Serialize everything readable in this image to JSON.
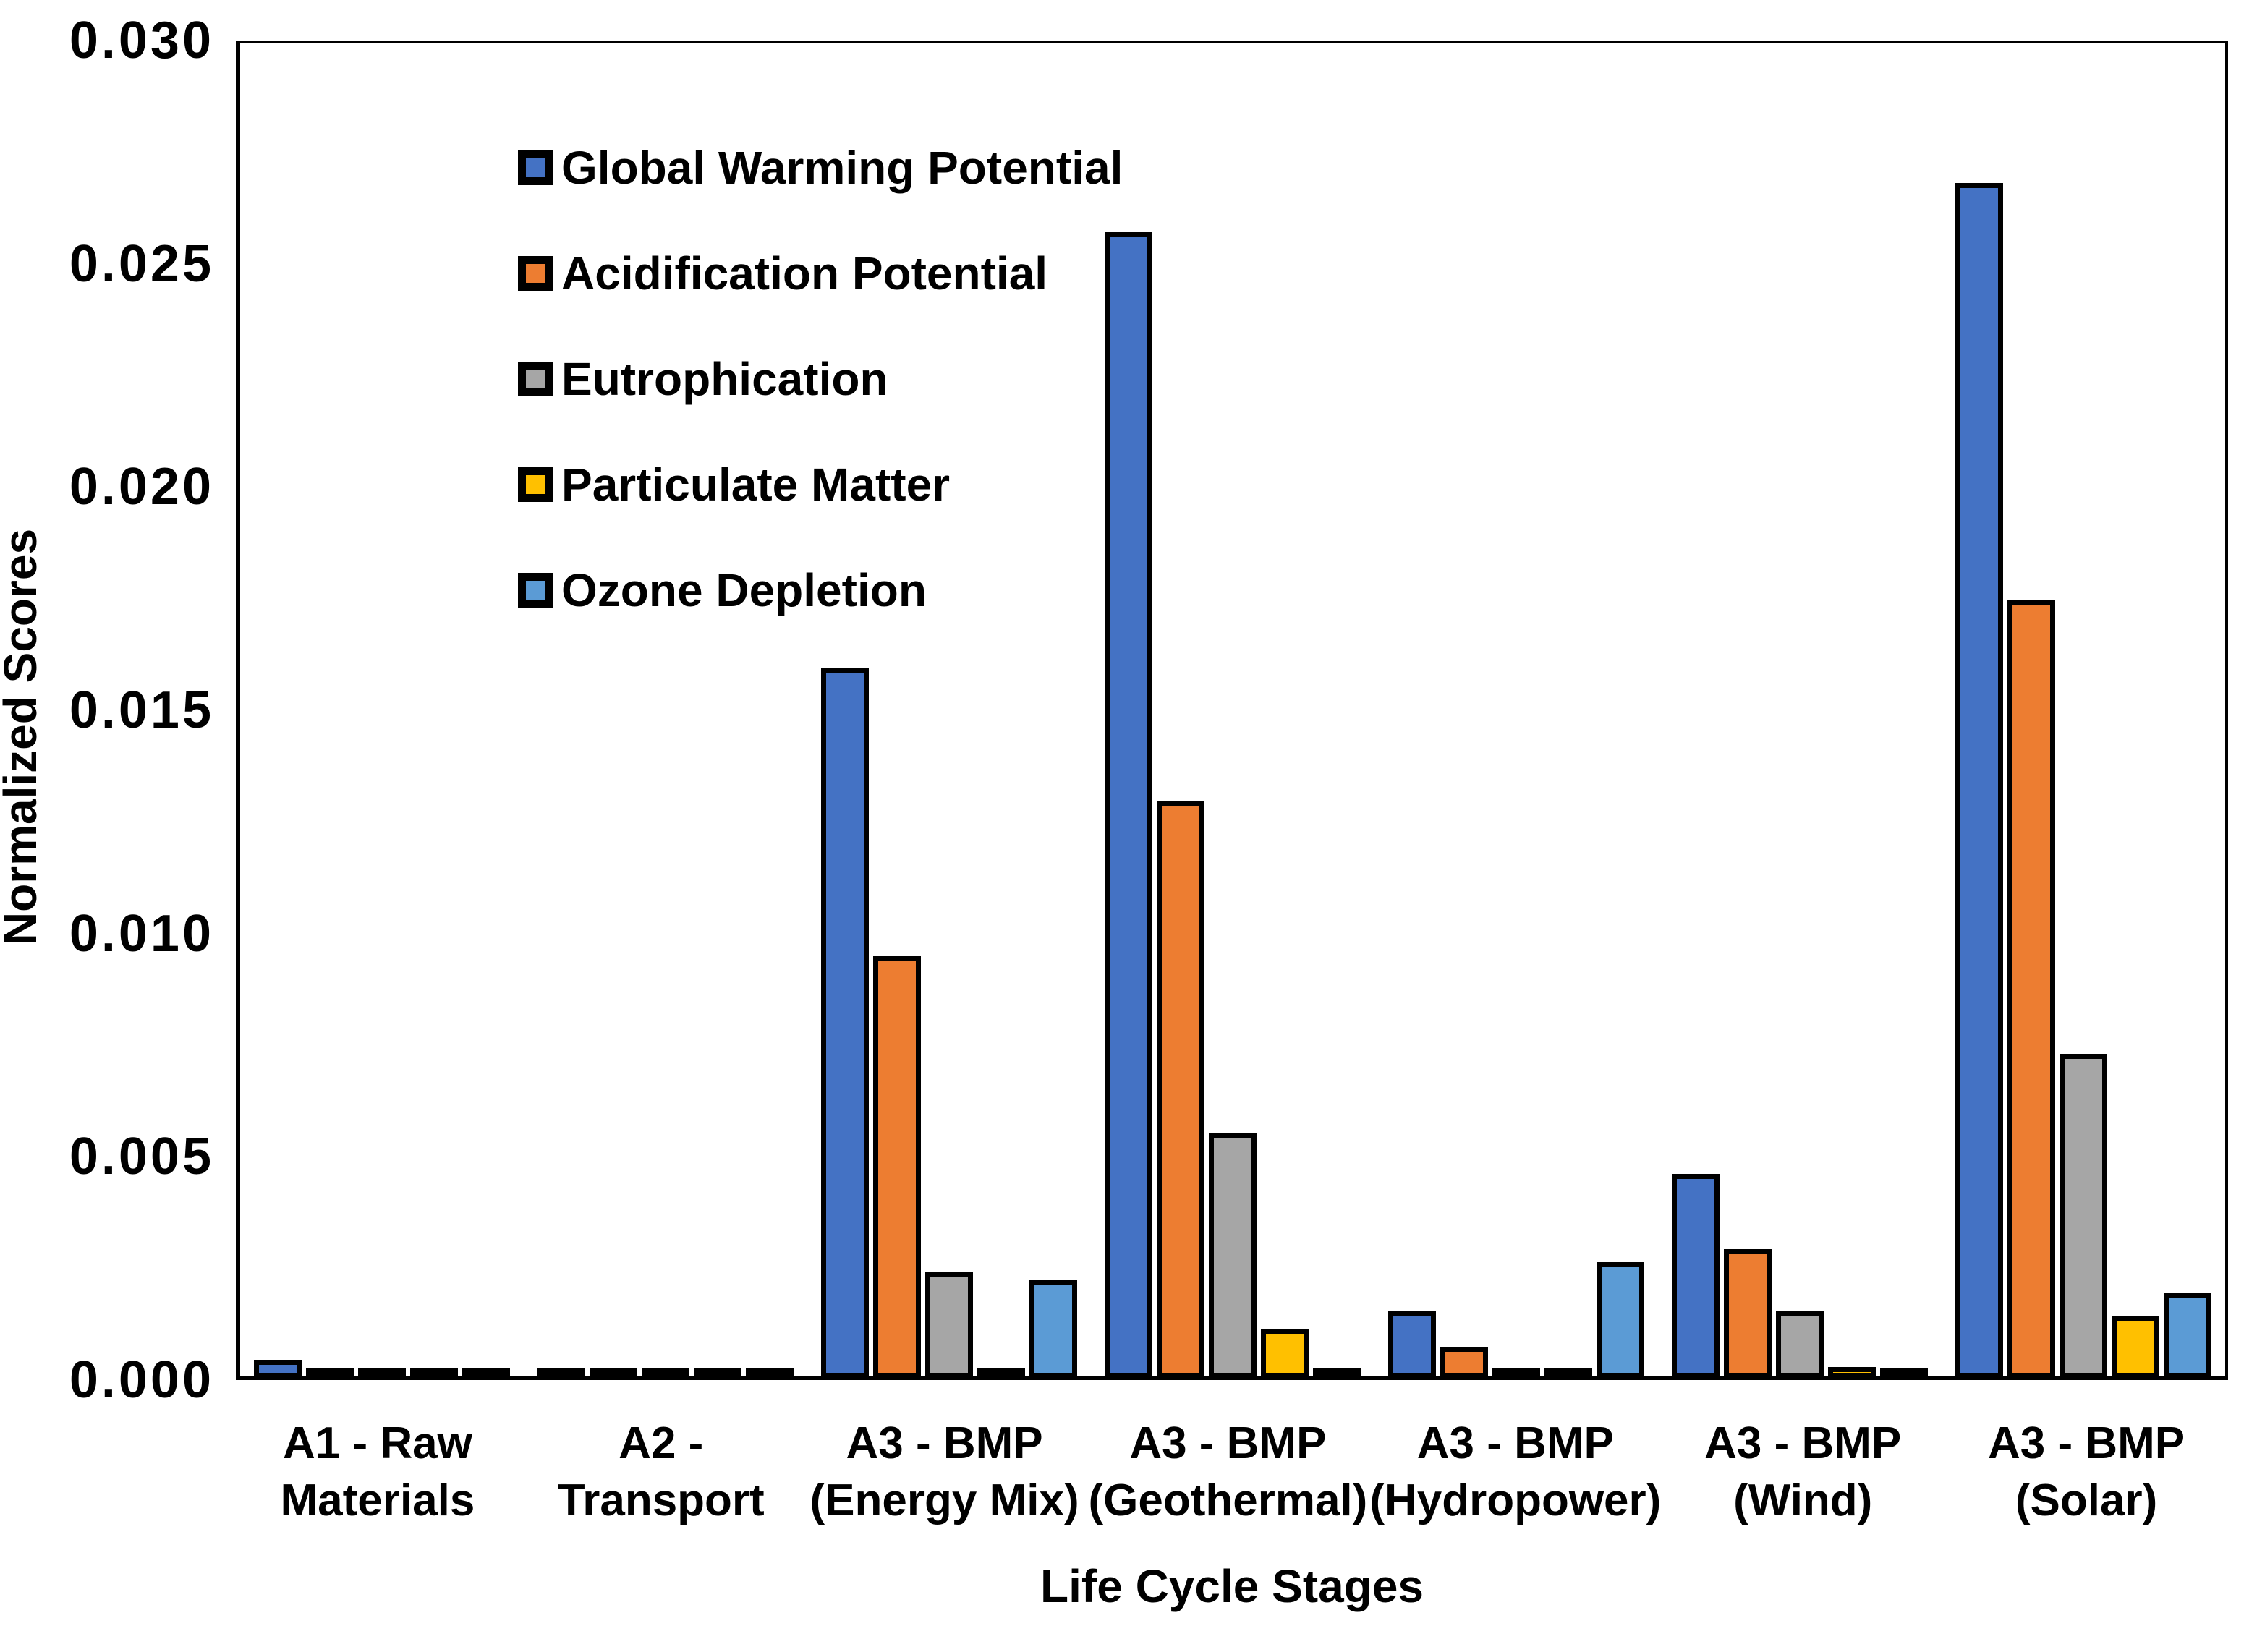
{
  "chart_data": {
    "type": "bar",
    "title": "",
    "xlabel": "Life Cycle Stages",
    "ylabel": "Normalized Scores",
    "ylim": [
      0,
      0.03
    ],
    "yticks": [
      0.0,
      0.005,
      0.01,
      0.015,
      0.02,
      0.025,
      0.03
    ],
    "ytick_labels": [
      "0.000",
      "0.005",
      "0.010",
      "0.015",
      "0.020",
      "0.025",
      "0.030"
    ],
    "grid": false,
    "legend_position": "top-left-inside",
    "bar_outline_color": "#000000",
    "background_color": "#ffffff",
    "categories": [
      "A1 - Raw\nMaterials",
      "A2 - Transport",
      "A3 - BMP\n(Energy Mix)",
      "A3 - BMP\n(Geothermal)",
      "A3 - BMP\n(Hydropower)",
      "A3 - BMP\n(Wind)",
      "A3 - BMP\n(Solar)"
    ],
    "series": [
      {
        "name": "Global Warming Potential",
        "color": "#4472C4",
        "values": [
          0.0004,
          5e-05,
          0.016,
          0.0258,
          0.0015,
          0.0046,
          0.0269
        ]
      },
      {
        "name": "Acidification Potential",
        "color": "#ED7D31",
        "values": [
          0.0002,
          5e-05,
          0.0095,
          0.013,
          0.0007,
          0.0029,
          0.0175
        ]
      },
      {
        "name": "Eutrophication",
        "color": "#A6A6A6",
        "values": [
          0.0001,
          5e-05,
          0.0024,
          0.0055,
          0.0002,
          0.0015,
          0.0073
        ]
      },
      {
        "name": "Particulate Matter",
        "color": "#FFC000",
        "values": [
          5e-05,
          5e-05,
          0.0001,
          0.0011,
          0.0001,
          0.00025,
          0.0014
        ]
      },
      {
        "name": "Ozone Depletion",
        "color": "#5B9BD5",
        "values": [
          5e-05,
          5e-05,
          0.0022,
          0.00015,
          0.0026,
          0.0001,
          0.0019
        ]
      }
    ]
  }
}
